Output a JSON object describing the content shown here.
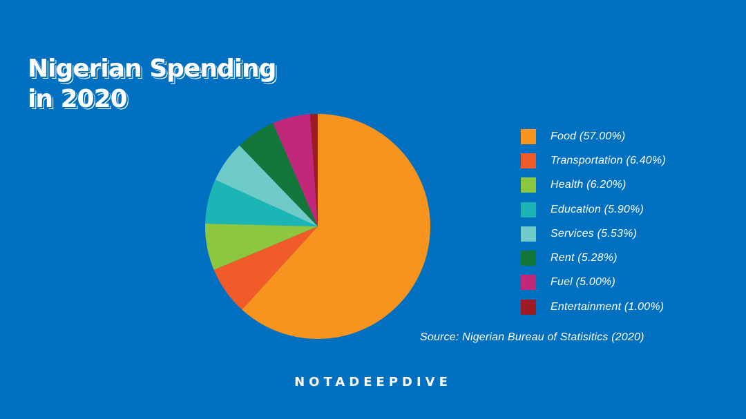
{
  "title_lines": [
    "Nigerian Spending",
    "in 2020"
  ],
  "source": "Source: Nigerian Bureau of Statisitics (2020)",
  "brand": "NOTADEEPDIVE",
  "chart_data": {
    "type": "pie",
    "title": "Nigerian Spending in 2020",
    "legend_position": "right",
    "slices": [
      {
        "label": "Food (57.00%)",
        "category": "Food",
        "value": 57.0,
        "color": "#f7941e"
      },
      {
        "label": "Transportation (6.40%)",
        "category": "Transportation",
        "value": 6.4,
        "color": "#f15a29"
      },
      {
        "label": "Health (6.20%)",
        "category": "Health",
        "value": 6.2,
        "color": "#8dc63f"
      },
      {
        "label": "Education (5.90%)",
        "category": "Education",
        "value": 5.9,
        "color": "#1cb5b5"
      },
      {
        "label": "Services (5.53%)",
        "category": "Services",
        "value": 5.53,
        "color": "#6ecbc7"
      },
      {
        "label": "Rent (5.28%)",
        "category": "Rent",
        "value": 5.28,
        "color": "#13763b"
      },
      {
        "label": "Fuel (5.00%)",
        "category": "Fuel",
        "value": 5.0,
        "color": "#c2287a"
      },
      {
        "label": "Entertainment (1.00%)",
        "category": "Entertainment",
        "value": 1.0,
        "color": "#9e1b25"
      }
    ]
  }
}
